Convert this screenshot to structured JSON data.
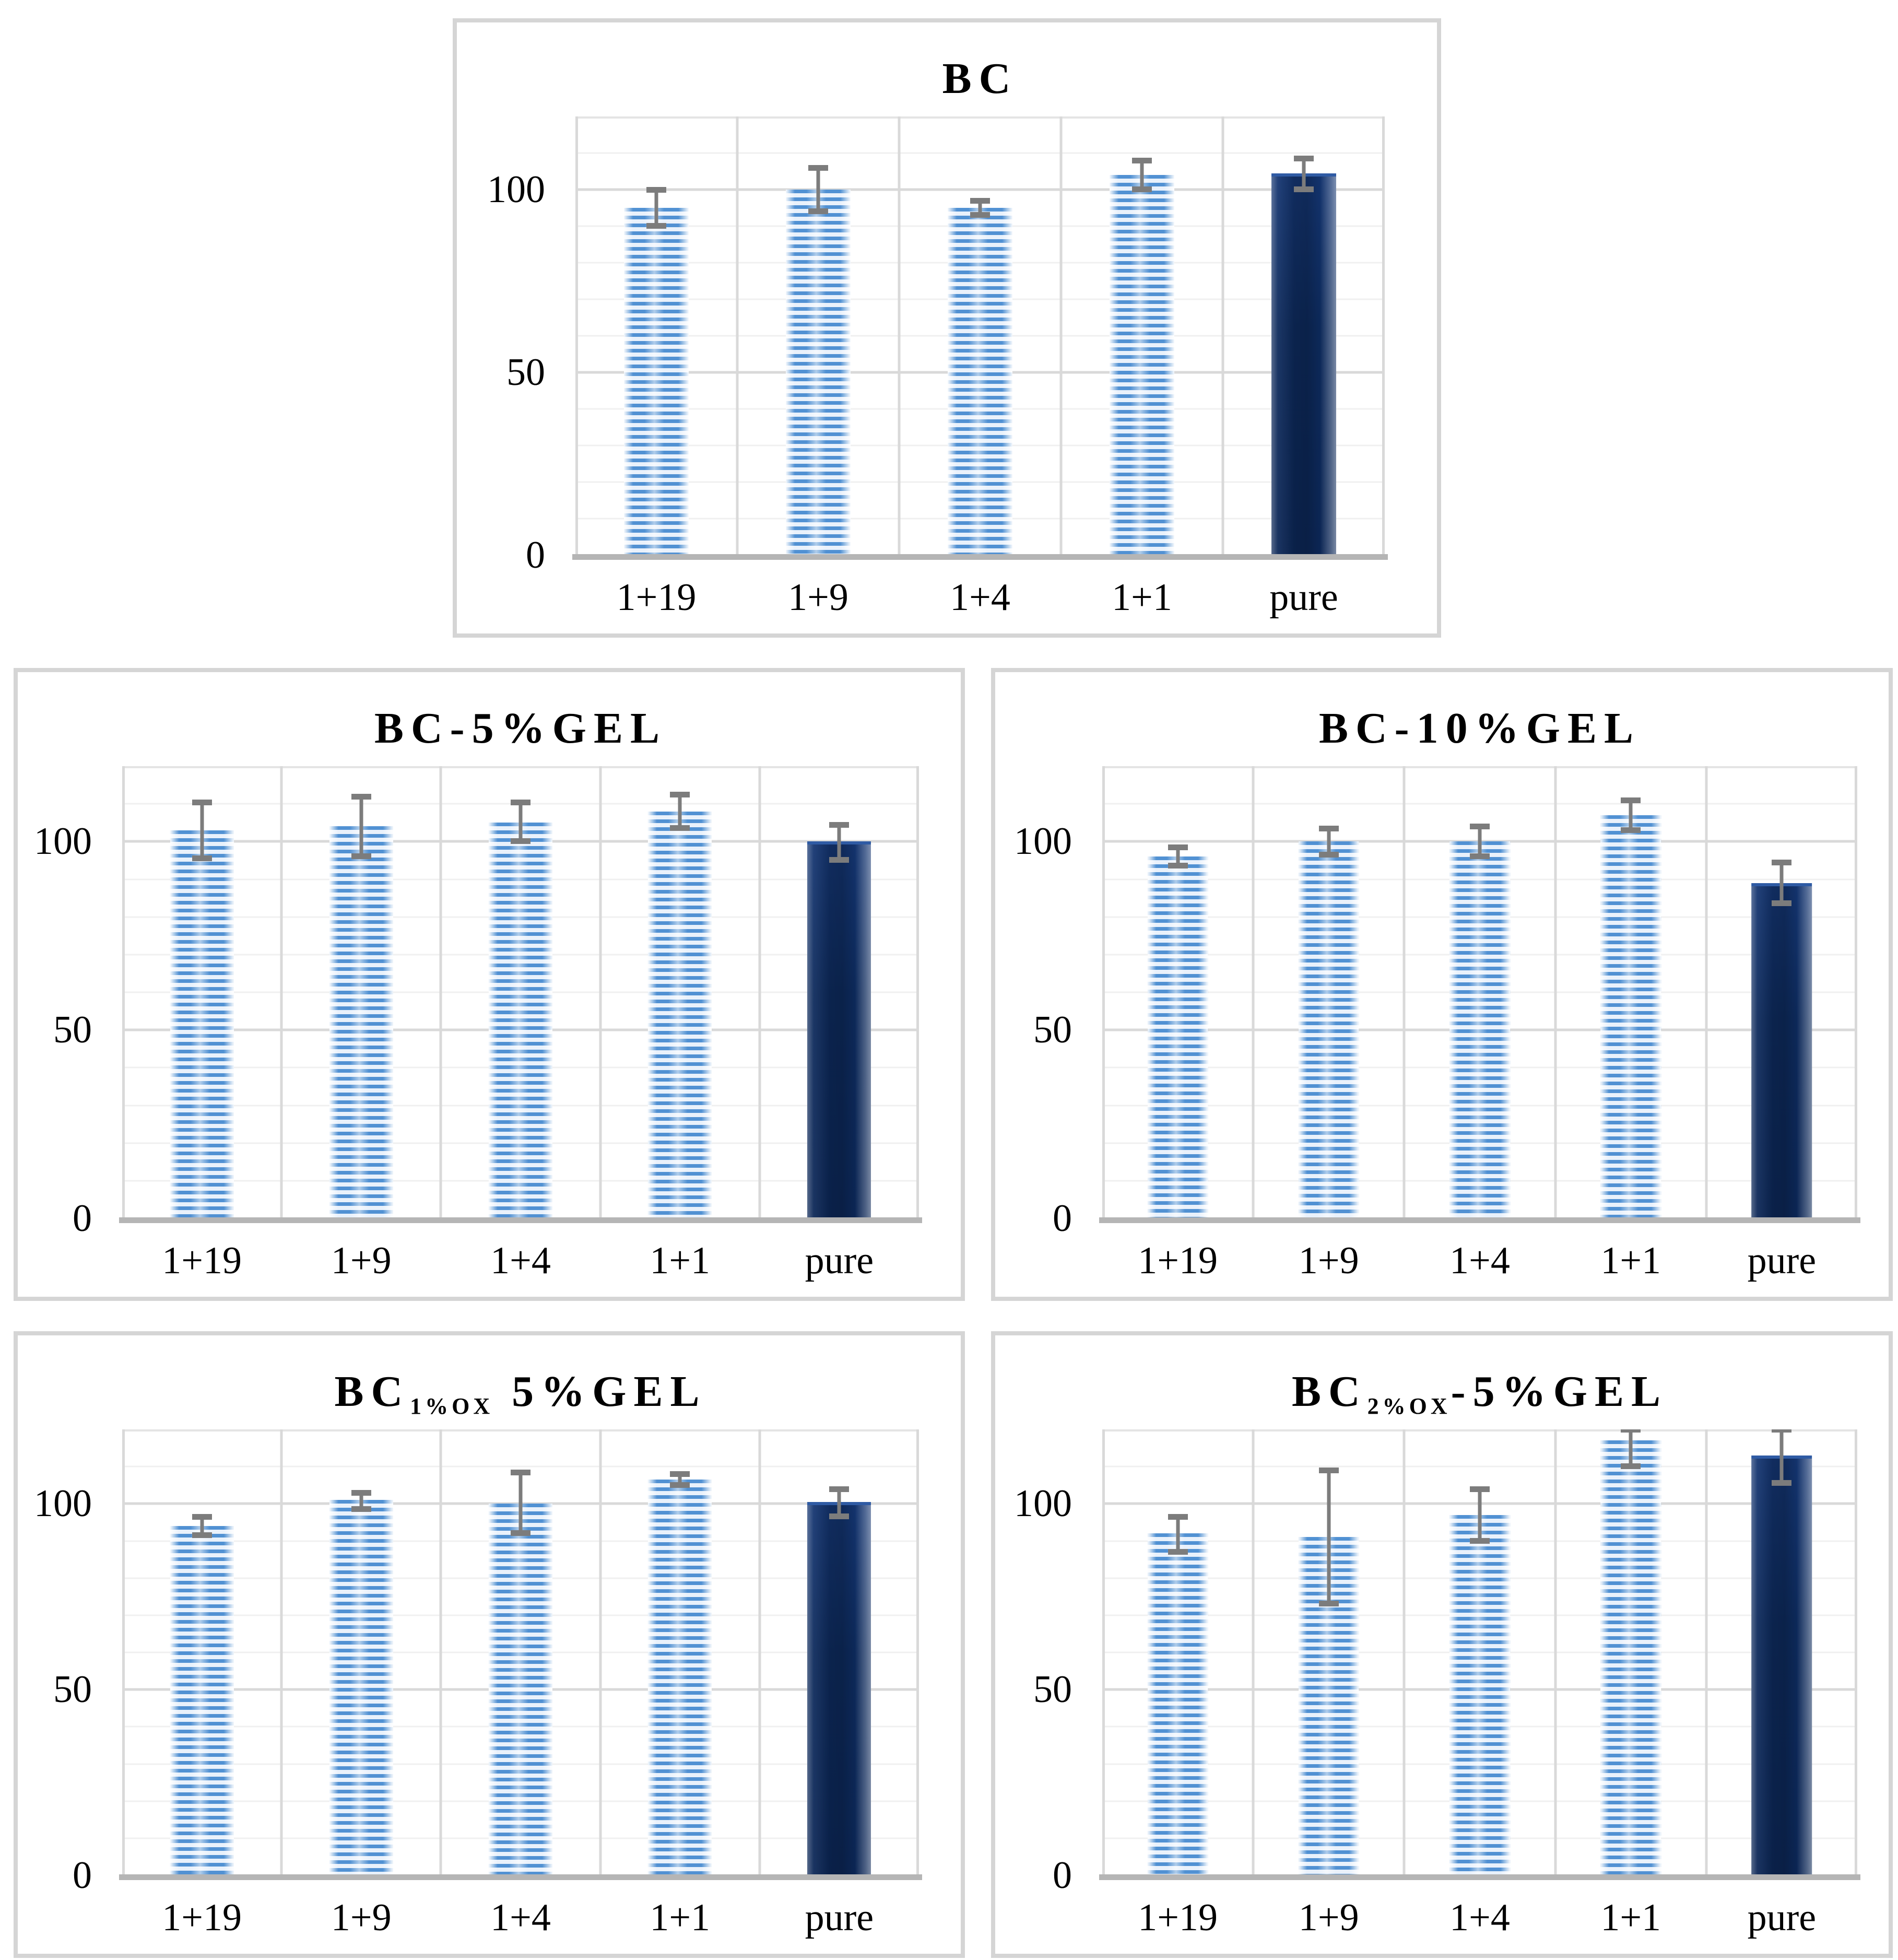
{
  "colors": {
    "stripe_blue": "#5191d3",
    "stripe_light": "#e9f1fb",
    "navy_body": "#0d2a5c",
    "navy_top_edge": "#2f5ba4",
    "error_gray": "#7c7c7c",
    "grid_minor": "#f0f0f0",
    "grid_major": "#d9d9d9",
    "grid_top": "#e4e4e4",
    "axis_gray": "#b5b5b5",
    "panel_border": "#d5d5d5",
    "text": "#000000",
    "background": "#ffffff"
  },
  "y_axis": {
    "ticks": [
      {
        "label": "0",
        "value": 0
      },
      {
        "label": "50",
        "value": 50
      },
      {
        "label": "100",
        "value": 100
      }
    ],
    "max": 120,
    "minor_step": 10
  },
  "chart_data": [
    {
      "type": "bar",
      "title_parts": [
        {
          "text": "BC"
        }
      ],
      "categories": [
        "1+19",
        "1+9",
        "1+4",
        "1+1",
        "pure"
      ],
      "values": [
        95,
        100,
        95,
        104,
        104.5
      ],
      "err_up": [
        5,
        6,
        2,
        4,
        4
      ],
      "err_down": [
        5,
        6,
        2,
        4,
        4.5
      ],
      "ylim": [
        0,
        120
      ],
      "yticks": [
        0,
        50,
        100
      ],
      "grid": true,
      "legend": "none",
      "xlabel": "",
      "ylabel": ""
    },
    {
      "type": "bar",
      "title_parts": [
        {
          "text": "BC-5%GEL"
        }
      ],
      "categories": [
        "1+19",
        "1+9",
        "1+4",
        "1+1",
        "pure"
      ],
      "values": [
        103,
        104,
        105,
        108,
        100
      ],
      "err_up": [
        7.5,
        8,
        5.5,
        4.5,
        4.5
      ],
      "err_down": [
        7.5,
        8,
        5,
        4.5,
        5
      ],
      "ylim": [
        0,
        120
      ],
      "yticks": [
        0,
        50,
        100
      ],
      "grid": true,
      "legend": "none",
      "xlabel": "",
      "ylabel": ""
    },
    {
      "type": "bar",
      "title_parts": [
        {
          "text": "BC-10%GEL"
        }
      ],
      "categories": [
        "1+19",
        "1+9",
        "1+4",
        "1+1",
        "pure"
      ],
      "values": [
        96,
        100,
        100,
        107,
        89
      ],
      "err_up": [
        2.5,
        3.5,
        4,
        4,
        5.5
      ],
      "err_down": [
        2.5,
        3.5,
        4,
        4,
        5.5
      ],
      "ylim": [
        0,
        120
      ],
      "yticks": [
        0,
        50,
        100
      ],
      "grid": true,
      "legend": "none",
      "xlabel": "",
      "ylabel": ""
    },
    {
      "type": "bar",
      "title_parts": [
        {
          "text": "BC"
        },
        {
          "text": "1%OX",
          "sub": true
        },
        {
          "text": " 5%GEL"
        }
      ],
      "categories": [
        "1+19",
        "1+9",
        "1+4",
        "1+1",
        "pure"
      ],
      "values": [
        94,
        101,
        100,
        106.5,
        100.5
      ],
      "err_up": [
        2.5,
        2,
        8.5,
        1.5,
        3.5
      ],
      "err_down": [
        2.5,
        2.5,
        8,
        1.5,
        4
      ],
      "ylim": [
        0,
        120
      ],
      "yticks": [
        0,
        50,
        100
      ],
      "grid": true,
      "legend": "none",
      "xlabel": "",
      "ylabel": ""
    },
    {
      "type": "bar",
      "title_parts": [
        {
          "text": "BC"
        },
        {
          "text": "2%OX",
          "sub": true
        },
        {
          "text": "-5%GEL"
        }
      ],
      "categories": [
        "1+19",
        "1+9",
        "1+4",
        "1+1",
        "pure"
      ],
      "values": [
        92,
        91,
        97,
        117,
        113
      ],
      "err_up": [
        4.5,
        18,
        7,
        3,
        7
      ],
      "err_down": [
        5,
        18,
        7,
        7,
        7.5
      ],
      "ylim": [
        0,
        120
      ],
      "yticks": [
        0,
        50,
        100
      ],
      "grid": true,
      "legend": "none",
      "xlabel": "",
      "ylabel": ""
    }
  ]
}
